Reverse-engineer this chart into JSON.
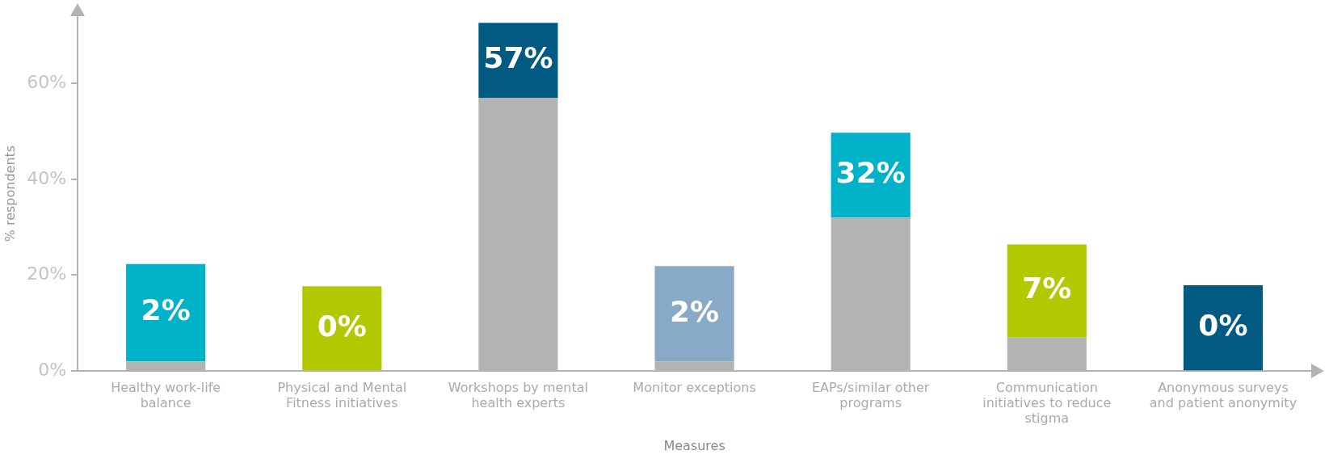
{
  "chart_data": {
    "type": "bar",
    "stacked": true,
    "xlabel": "Measures",
    "ylabel": "% respondents",
    "categories": [
      "Healthy work-life balance",
      "Physical and Mental Fitness initiatives",
      "Workshops by mental health experts",
      "Monitor exceptions",
      "EAPs/similar other programs",
      "Communication initiatives to reduce stigma",
      "Anonymous surveys and patient anonymity"
    ],
    "series": [
      {
        "color": "#b3b3b3",
        "values": [
          2,
          0,
          57,
          2,
          32,
          7,
          0
        ],
        "value_labels": [
          "2%",
          "0%",
          "57%",
          "2%",
          "32%",
          "7%",
          "0%"
        ]
      },
      {
        "colors": [
          "#00b2c8",
          "#b2c800",
          "#005a82",
          "#88aac6",
          "#00b2c8",
          "#b2c800",
          "#005a82"
        ],
        "values": [
          20.3,
          17.7,
          15.6,
          19.9,
          17.7,
          19.4,
          17.9
        ]
      }
    ],
    "ylim": [
      0,
      74
    ],
    "yticks": [
      {
        "value": 0,
        "label": "0%"
      },
      {
        "value": 20,
        "label": "20%"
      },
      {
        "value": 40,
        "label": "40%"
      },
      {
        "value": 60,
        "label": "60%"
      }
    ],
    "grid": false,
    "legend": false
  }
}
